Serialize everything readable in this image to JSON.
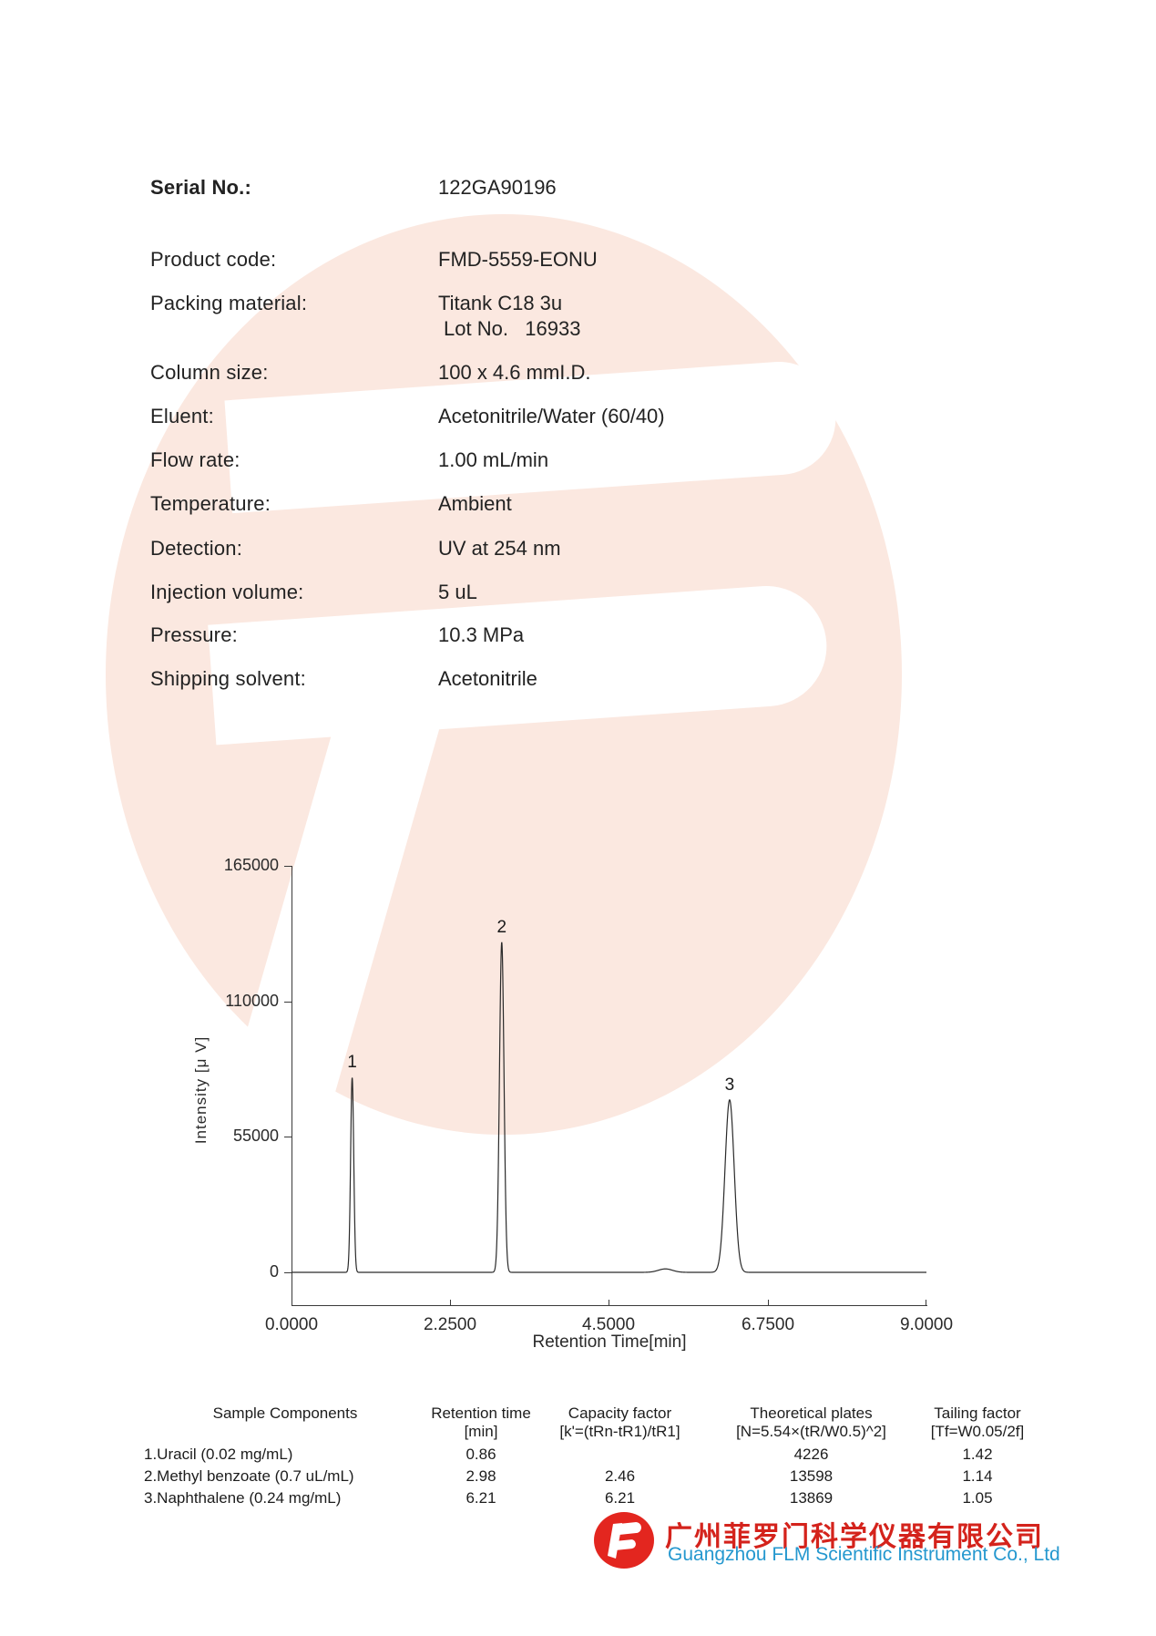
{
  "fields": [
    {
      "label": "Serial No.:",
      "value": "122GA90196"
    },
    {
      "label": "Product code:",
      "value": "FMD-5559-EONU"
    },
    {
      "label": "Packing material:",
      "value": "Titank C18 3u",
      "value2": "Lot No.   16933"
    },
    {
      "label": "Column size:",
      "value": "100 x 4.6 mmI.D."
    },
    {
      "label": "Eluent:",
      "value": "Acetonitrile/Water (60/40)"
    },
    {
      "label": "Flow rate:",
      "value": "1.00 mL/min"
    },
    {
      "label": "Temperature:",
      "value": "Ambient"
    },
    {
      "label": "Detection:",
      "value": "UV at 254 nm"
    },
    {
      "label": "Injection volume:",
      "value": "5 uL"
    },
    {
      "label": "Pressure:",
      "value": "10.3 MPa"
    },
    {
      "label": "Shipping solvent:",
      "value": "Acetonitrile"
    }
  ],
  "chart_data": {
    "type": "line",
    "title": "",
    "xlabel": "Retention Time[min]",
    "ylabel": "Intensity [μ V]",
    "xlim": [
      0,
      9
    ],
    "ylim": [
      0,
      165000
    ],
    "x_ticks": [
      "0.0000",
      "2.2500",
      "4.5000",
      "6.7500",
      "9.0000"
    ],
    "y_ticks": [
      "165000",
      "110000",
      "55000",
      "0"
    ],
    "grid": false,
    "legend": "none",
    "description": "HPLC chromatogram: flat baseline at 0 with three sharp labeled peaks",
    "peaks": [
      {
        "label": "1",
        "retention_time_min": 0.86,
        "height_uV": 79000,
        "sigma_min": 0.022
      },
      {
        "label": "2",
        "retention_time_min": 2.98,
        "height_uV": 134000,
        "sigma_min": 0.032
      },
      {
        "label": "",
        "retention_time_min": 5.3,
        "height_uV": 1400,
        "sigma_min": 0.1
      },
      {
        "label": "3",
        "retention_time_min": 6.21,
        "height_uV": 70000,
        "sigma_min": 0.065
      }
    ]
  },
  "table": {
    "headers": [
      {
        "line1": "Sample Components",
        "line2": ""
      },
      {
        "line1": "Retention time",
        "line2": "[min]"
      },
      {
        "line1": "Capacity factor",
        "line2": "[k'=(tRn-tR1)/tR1]"
      },
      {
        "line1": "Theoretical plates",
        "line2": "[N=5.54×(tR/W0.5)^2]"
      },
      {
        "line1": "Tailing factor",
        "line2": "[Tf=W0.05/2f]"
      }
    ],
    "rows": [
      {
        "component": "1.Uracil (0.02 mg/mL)",
        "retention": "0.86",
        "capacity": "",
        "plates": "4226",
        "tailing": "1.42"
      },
      {
        "component": "2.Methyl benzoate (0.7 uL/mL)",
        "retention": "2.98",
        "capacity": "2.46",
        "plates": "13598",
        "tailing": "1.14"
      },
      {
        "component": "3.Naphthalene (0.24 mg/mL)",
        "retention": "6.21",
        "capacity": "6.21",
        "plates": "13869",
        "tailing": "1.05"
      }
    ]
  },
  "footer": {
    "company_cn": "广州菲罗门科学仪器有限公司",
    "company_en": "Guangzhou FLM Scientific Instrument Co., Ltd"
  },
  "colors": {
    "watermark": "#fbe8e0",
    "logo_red": "#e3261f",
    "text_red": "#d4231c",
    "text_blue": "#2598cf",
    "trace": "#2a2a2a"
  }
}
